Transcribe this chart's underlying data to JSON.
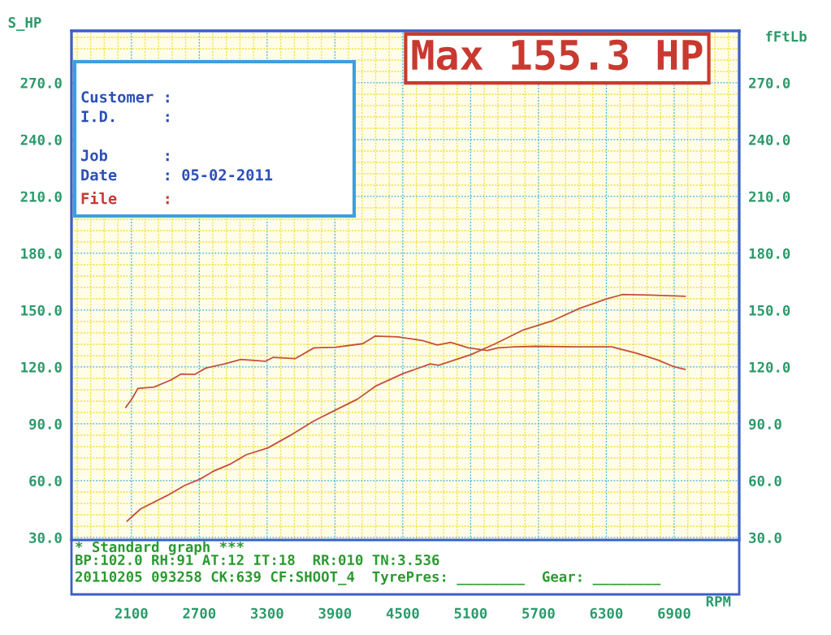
{
  "chart_data": {
    "type": "line",
    "xlabel": "RPM",
    "ylabel": "S_HP",
    "y2label": "fFtLb",
    "annotations": [
      "Max 155.3 HP",
      "Customer :",
      "I.D.     :",
      "Job      :",
      "Date     : 05-02-2011",
      "File     :",
      "* Standard graph ***",
      "BP:102.0 RH:91 AT:12 IT:18  RR:010 TN:3.536",
      "20110205 093258 CK:639 CF:SHOOT_4  TyrePres: ________  Gear: ________"
    ],
    "xlim": [
      1570,
      7475
    ],
    "xticks": [
      {
        "value": 1620,
        "label": null
      },
      {
        "value": 1740,
        "label": null
      },
      {
        "value": 1860,
        "label": null
      },
      {
        "value": 1980,
        "label": null
      },
      2100,
      {
        "value": 2220,
        "label": null
      },
      {
        "value": 2340,
        "label": null
      },
      {
        "value": 2460,
        "label": null
      },
      {
        "value": 2580,
        "label": null
      },
      2700,
      {
        "value": 2820,
        "label": null
      },
      {
        "value": 2940,
        "label": null
      },
      {
        "value": 3060,
        "label": null
      },
      {
        "value": 3180,
        "label": null
      },
      3300,
      {
        "value": 3420,
        "label": null
      },
      {
        "value": 3540,
        "label": null
      },
      {
        "value": 3660,
        "label": null
      },
      {
        "value": 3780,
        "label": null
      },
      3900,
      {
        "value": 4020,
        "label": null
      },
      {
        "value": 4140,
        "label": null
      },
      {
        "value": 4260,
        "label": null
      },
      {
        "value": 4380,
        "label": null
      },
      4500,
      {
        "value": 4620,
        "label": null
      },
      {
        "value": 4740,
        "label": null
      },
      {
        "value": 4860,
        "label": null
      },
      {
        "value": 4980,
        "label": null
      },
      5100,
      {
        "value": 5220,
        "label": null
      },
      {
        "value": 5340,
        "label": null
      },
      {
        "value": 5460,
        "label": null
      },
      {
        "value": 5580,
        "label": null
      },
      5700,
      {
        "value": 5820,
        "label": null
      },
      {
        "value": 5940,
        "label": null
      },
      {
        "value": 6060,
        "label": null
      },
      {
        "value": 6180,
        "label": null
      },
      6300,
      {
        "value": 6420,
        "label": null
      },
      {
        "value": 6540,
        "label": null
      },
      {
        "value": 6660,
        "label": null
      },
      {
        "value": 6780,
        "label": null
      },
      6900,
      {
        "value": 7020,
        "label": null
      },
      {
        "value": 7140,
        "label": null
      },
      {
        "value": 7260,
        "label": null
      },
      {
        "value": 7380,
        "label": null
      }
    ],
    "ylim": [
      28.7,
      297.4
    ],
    "yticks": [
      {
        "value": 30,
        "label": "30.0"
      },
      {
        "value": 36,
        "label": null
      },
      {
        "value": 42,
        "label": null
      },
      {
        "value": 48,
        "label": null
      },
      {
        "value": 54,
        "label": null
      },
      {
        "value": 60,
        "label": "60.0"
      },
      {
        "value": 66,
        "label": null
      },
      {
        "value": 72,
        "label": null
      },
      {
        "value": 78,
        "label": null
      },
      {
        "value": 84,
        "label": null
      },
      {
        "value": 90,
        "label": "90.0"
      },
      {
        "value": 96,
        "label": null
      },
      {
        "value": 102,
        "label": null
      },
      {
        "value": 108,
        "label": null
      },
      {
        "value": 114,
        "label": null
      },
      {
        "value": 120,
        "label": "120.0"
      },
      {
        "value": 126,
        "label": null
      },
      {
        "value": 132,
        "label": null
      },
      {
        "value": 138,
        "label": null
      },
      {
        "value": 144,
        "label": null
      },
      {
        "value": 150,
        "label": "150.0"
      },
      {
        "value": 156,
        "label": null
      },
      {
        "value": 162,
        "label": null
      },
      {
        "value": 168,
        "label": null
      },
      {
        "value": 174,
        "label": null
      },
      {
        "value": 180,
        "label": "180.0"
      },
      {
        "value": 186,
        "label": null
      },
      {
        "value": 192,
        "label": null
      },
      {
        "value": 198,
        "label": null
      },
      {
        "value": 204,
        "label": null
      },
      {
        "value": 210,
        "label": "210.0"
      },
      {
        "value": 216,
        "label": null
      },
      {
        "value": 222,
        "label": null
      },
      {
        "value": 228,
        "label": null
      },
      {
        "value": 234,
        "label": null
      },
      {
        "value": 240,
        "label": "240.0"
      },
      {
        "value": 246,
        "label": null
      },
      {
        "value": 252,
        "label": null
      },
      {
        "value": 258,
        "label": null
      },
      {
        "value": 264,
        "label": null
      },
      {
        "value": 270,
        "label": "270.0"
      },
      {
        "value": 276,
        "label": null
      },
      {
        "value": 282,
        "label": null
      },
      {
        "value": 288,
        "label": null
      },
      {
        "value": 294,
        "label": null
      }
    ],
    "y2lim": [
      28.7,
      297.4
    ],
    "y2ticks": [
      {
        "value": 30,
        "label": "30.0"
      },
      {
        "value": 60,
        "label": "60.0"
      },
      {
        "value": 90,
        "label": "90.0"
      },
      {
        "value": 120,
        "label": "120.0"
      },
      {
        "value": 150,
        "label": "150.0"
      },
      {
        "value": 180,
        "label": "180.0"
      },
      {
        "value": 210,
        "label": "210.0"
      },
      {
        "value": 240,
        "label": "240.0"
      },
      {
        "value": 270,
        "label": "270.0"
      }
    ],
    "grid": true,
    "marker": "none",
    "line_style": "solid",
    "series": [
      {
        "color": "#c4503a",
        "x": [
          2062,
          2181,
          2421,
          2565,
          2709,
          2828,
          2972,
          3115,
          3307,
          3499,
          3715,
          3906,
          4098,
          4265,
          4505,
          4744,
          4816,
          5104,
          5319,
          5559,
          5822,
          6062,
          6301,
          6445,
          6685,
          6996
        ],
        "values": [
          38.7,
          45.1,
          52.3,
          57.3,
          60.9,
          65.1,
          68.7,
          73.7,
          77.3,
          83.7,
          91.6,
          97.3,
          103,
          110.1,
          116.6,
          121.6,
          120.9,
          126.6,
          132.3,
          139.4,
          144.4,
          150.9,
          155.9,
          158.3,
          158,
          157.3
        ]
      },
      {
        "color": "#c4503a",
        "x": [
          2050,
          2110,
          2157,
          2301,
          2445,
          2541,
          2661,
          2756,
          2924,
          3068,
          3284,
          3355,
          3547,
          3715,
          3906,
          4146,
          4254,
          4457,
          4673,
          4805,
          4924,
          5080,
          5247,
          5343,
          5487,
          5679,
          6014,
          6349,
          6565,
          6756,
          6900,
          6996
        ],
        "values": [
          98.7,
          103.7,
          108.7,
          109.4,
          113,
          116.3,
          116.1,
          119.4,
          121.6,
          124,
          123,
          125.1,
          124.4,
          130.1,
          130.4,
          132.3,
          136.3,
          135.9,
          134,
          131.6,
          133,
          130.1,
          128.7,
          130.1,
          130.6,
          130.9,
          130.6,
          130.6,
          127.3,
          123.7,
          120.1,
          118.7
        ]
      }
    ]
  }
}
